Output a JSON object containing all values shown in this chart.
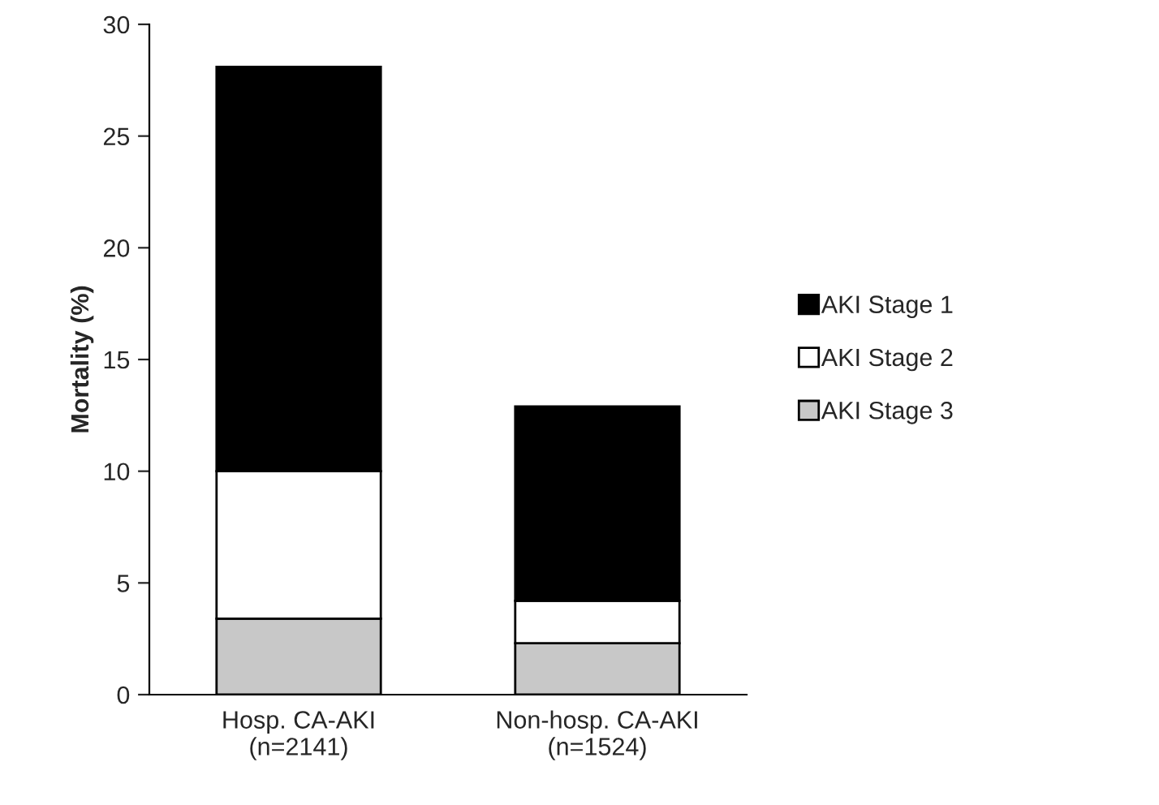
{
  "chart_data": {
    "type": "bar",
    "ylabel": "Mortality (%)",
    "categories": [
      "Hosp. CA-AKI\n(n=2141)",
      "Non-hosp. CA-AKI\n(n=1524)"
    ],
    "stacked": true,
    "series": [
      {
        "name": "AKI Stage 3",
        "color": "#c8c8c8",
        "values": [
          3.4,
          2.3
        ]
      },
      {
        "name": "AKI Stage 2",
        "color": "#ffffff",
        "values": [
          6.6,
          1.9
        ]
      },
      {
        "name": "AKI Stage 1",
        "color": "#000000",
        "values": [
          18.1,
          8.7
        ]
      }
    ],
    "ylim": [
      0,
      30
    ],
    "yticks": [
      0,
      5,
      10,
      15,
      20,
      25,
      30
    ],
    "legend": "right",
    "grid": false
  }
}
